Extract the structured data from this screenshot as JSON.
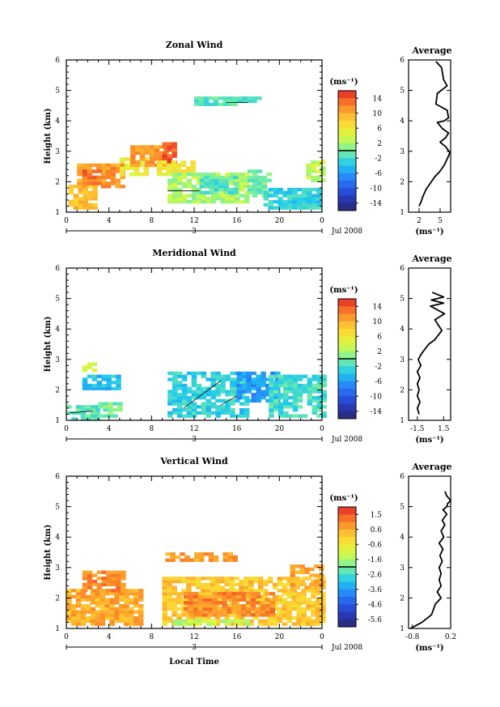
{
  "chart_data": [
    {
      "type": "heatmap",
      "title": "Zonal Wind",
      "ylabel": "Height (km)",
      "xlim": [
        0,
        24
      ],
      "ylim": [
        1,
        6
      ],
      "x_ticks": [
        "0",
        "4",
        "8",
        "12",
        "16",
        "20",
        "0"
      ],
      "y_ticks": [
        "1",
        "2",
        "3",
        "4",
        "5",
        "6"
      ],
      "date_label": "3",
      "month_label": "Jul 2008",
      "colorbar": {
        "unit": "(ms⁻¹)",
        "range": [
          -16,
          16
        ],
        "ticks": [
          "14",
          "10",
          "6",
          "2",
          "-2",
          "-6",
          "-10",
          "-14"
        ]
      },
      "regions": [
        {
          "x": [
            0.2,
            2.5
          ],
          "y": [
            1.1,
            1.9
          ],
          "value": 9
        },
        {
          "x": [
            1.0,
            5.5
          ],
          "y": [
            1.8,
            2.6
          ],
          "value": 11
        },
        {
          "x": [
            1.5,
            3.0
          ],
          "y": [
            1.9,
            2.4
          ],
          "value": 13
        },
        {
          "x": [
            5.0,
            7.5
          ],
          "y": [
            2.2,
            2.8
          ],
          "value": 5
        },
        {
          "x": [
            6.0,
            9.5
          ],
          "y": [
            2.5,
            3.2
          ],
          "value": 11
        },
        {
          "x": [
            9.0,
            10.2
          ],
          "y": [
            2.6,
            3.3
          ],
          "value": 14
        },
        {
          "x": [
            8.5,
            12.0
          ],
          "y": [
            2.2,
            2.7
          ],
          "value": 6
        },
        {
          "x": [
            9.5,
            17.0
          ],
          "y": [
            1.3,
            2.3
          ],
          "value": 2
        },
        {
          "x": [
            12.5,
            16.0
          ],
          "y": [
            1.6,
            2.2
          ],
          "value": -1
        },
        {
          "x": [
            17.0,
            19.0
          ],
          "y": [
            1.5,
            2.4
          ],
          "value": 0
        },
        {
          "x": [
            18.5,
            23.5
          ],
          "y": [
            1.1,
            1.8
          ],
          "value": -3
        },
        {
          "x": [
            22.5,
            24.0
          ],
          "y": [
            2.0,
            2.7
          ],
          "value": 3
        },
        {
          "x": [
            12.0,
            18.0
          ],
          "y": [
            4.5,
            4.7
          ],
          "value": -1
        }
      ],
      "contours": [
        {
          "x": [
            9.5,
            12.5
          ],
          "y": [
            1.7,
            1.7
          ]
        },
        {
          "x": [
            15.0,
            17.0
          ],
          "y": [
            4.6,
            4.6
          ]
        }
      ],
      "average": {
        "title": "Average",
        "xlabel": "(ms⁻¹)",
        "xlim": [
          0.5,
          6.5
        ],
        "x_ticks": [
          "2",
          "5"
        ],
        "x": [
          2.0,
          2.3,
          2.6,
          3.0,
          3.6,
          4.2,
          5.0,
          5.6,
          6.0,
          6.4,
          5.8,
          5.0,
          5.8,
          6.2,
          5.3,
          4.6,
          5.6,
          6.2,
          6.0,
          4.4,
          4.6,
          6.0,
          5.5,
          5.2,
          4.4
        ],
        "y": [
          1.2,
          1.35,
          1.55,
          1.75,
          1.95,
          2.15,
          2.35,
          2.55,
          2.75,
          2.95,
          3.15,
          3.3,
          3.45,
          3.6,
          3.75,
          3.95,
          4.0,
          4.1,
          4.35,
          4.55,
          4.9,
          5.15,
          5.35,
          5.75,
          5.95
        ]
      }
    },
    {
      "type": "heatmap",
      "title": "Meridional Wind",
      "ylabel": "Height (km)",
      "xlim": [
        0,
        24
      ],
      "ylim": [
        1,
        6
      ],
      "x_ticks": [
        "0",
        "4",
        "8",
        "12",
        "16",
        "20",
        "0"
      ],
      "y_ticks": [
        "1",
        "2",
        "3",
        "4",
        "5",
        "6"
      ],
      "date_label": "3",
      "month_label": "Jul 2008",
      "colorbar": {
        "unit": "(ms⁻¹)",
        "range": [
          -16,
          16
        ],
        "ticks": [
          "14",
          "10",
          "6",
          "2",
          "-2",
          "-6",
          "-10",
          "-14"
        ]
      },
      "regions": [
        {
          "x": [
            0.0,
            3.0
          ],
          "y": [
            1.0,
            1.5
          ],
          "value": -1
        },
        {
          "x": [
            1.5,
            5.0
          ],
          "y": [
            2.0,
            2.5
          ],
          "value": -4
        },
        {
          "x": [
            3.0,
            5.0
          ],
          "y": [
            1.1,
            1.6
          ],
          "value": 0
        },
        {
          "x": [
            9.5,
            17.0
          ],
          "y": [
            1.1,
            2.6
          ],
          "value": -3
        },
        {
          "x": [
            16.0,
            20.0
          ],
          "y": [
            1.6,
            2.6
          ],
          "value": -6
        },
        {
          "x": [
            19.0,
            24.0
          ],
          "y": [
            1.1,
            2.5
          ],
          "value": -2
        },
        {
          "x": [
            1.5,
            2.5
          ],
          "y": [
            2.6,
            2.9
          ],
          "value": 4
        }
      ],
      "contours": [
        {
          "x": [
            0.3,
            2.5
          ],
          "y": [
            1.25,
            1.3
          ]
        },
        {
          "x": [
            11.0,
            14.5
          ],
          "y": [
            1.4,
            2.3
          ]
        },
        {
          "x": [
            14.5,
            16.0
          ],
          "y": [
            1.5,
            1.8
          ]
        }
      ],
      "average": {
        "title": "Average",
        "xlabel": "(ms⁻¹)",
        "xlim": [
          -2.5,
          2.3
        ],
        "x_ticks": [
          "-1.5",
          "1.5"
        ],
        "x": [
          -1.3,
          -1.5,
          -1.2,
          -1.5,
          -1.3,
          -1.5,
          -1.2,
          -1.5,
          -1.1,
          -1.4,
          -1.0,
          -0.6,
          -0.2,
          0.5,
          0.9,
          1.3,
          0.5,
          1.6,
          0.0,
          1.5,
          0.1,
          1.5,
          0.2
        ],
        "y": [
          1.2,
          1.4,
          1.6,
          1.8,
          2.0,
          2.2,
          2.4,
          2.6,
          2.8,
          3.0,
          3.2,
          3.35,
          3.5,
          3.65,
          3.8,
          3.95,
          4.3,
          4.5,
          4.75,
          4.85,
          4.95,
          5.05,
          5.2
        ]
      }
    },
    {
      "type": "heatmap",
      "title": "Vertical Wind",
      "ylabel": "Height (km)",
      "xlabel": "Local Time",
      "xlim": [
        0,
        24
      ],
      "ylim": [
        1,
        6
      ],
      "x_ticks": [
        "0",
        "4",
        "8",
        "12",
        "16",
        "20",
        "0"
      ],
      "y_ticks": [
        "1",
        "2",
        "3",
        "4",
        "5",
        "6"
      ],
      "date_label": "3",
      "month_label": "Jul 2008",
      "colorbar": {
        "unit": "(ms⁻¹)",
        "range": [
          -6.0,
          2.0
        ],
        "ticks": [
          "1.5",
          "0.6",
          "-0.6",
          "-1.6",
          "-2.6",
          "-3.6",
          "-4.6",
          "-5.6"
        ]
      },
      "regions": [
        {
          "x": [
            0.0,
            7.0
          ],
          "y": [
            1.1,
            2.3
          ],
          "value": 0.5
        },
        {
          "x": [
            1.5,
            5.5
          ],
          "y": [
            2.2,
            2.9
          ],
          "value": 0.9
        },
        {
          "x": [
            9.0,
            24.0
          ],
          "y": [
            1.1,
            2.7
          ],
          "value": 0.1
        },
        {
          "x": [
            11.0,
            19.5
          ],
          "y": [
            1.4,
            2.2
          ],
          "value": 0.9
        },
        {
          "x": [
            9.3,
            16.0
          ],
          "y": [
            3.2,
            3.5
          ],
          "value": 0.6
        },
        {
          "x": [
            10.0,
            17.0
          ],
          "y": [
            1.1,
            1.3
          ],
          "value": -1.3
        },
        {
          "x": [
            21.0,
            24.0
          ],
          "y": [
            2.3,
            3.1
          ],
          "value": 0.6
        }
      ],
      "contours": [],
      "average": {
        "title": "Average",
        "xlabel": "(ms⁻¹)",
        "xlim": [
          -0.9,
          0.2
        ],
        "x_ticks": [
          "-0.8",
          "0.2"
        ],
        "x": [
          -0.85,
          -0.55,
          -0.3,
          -0.2,
          -0.05,
          -0.15,
          -0.05,
          -0.1,
          -0.05,
          -0.1,
          -0.02,
          -0.08,
          0.0,
          -0.1,
          0.02,
          -0.05,
          0.05,
          -0.02,
          0.1,
          0.0,
          0.1,
          0.12,
          0.2,
          0.1,
          0.05
        ],
        "y": [
          1.0,
          1.2,
          1.45,
          1.8,
          2.0,
          2.2,
          2.4,
          2.6,
          2.8,
          3.0,
          3.2,
          3.4,
          3.6,
          3.8,
          4.0,
          4.2,
          4.4,
          4.55,
          4.75,
          4.9,
          5.0,
          5.1,
          5.2,
          5.35,
          5.5
        ]
      }
    }
  ]
}
